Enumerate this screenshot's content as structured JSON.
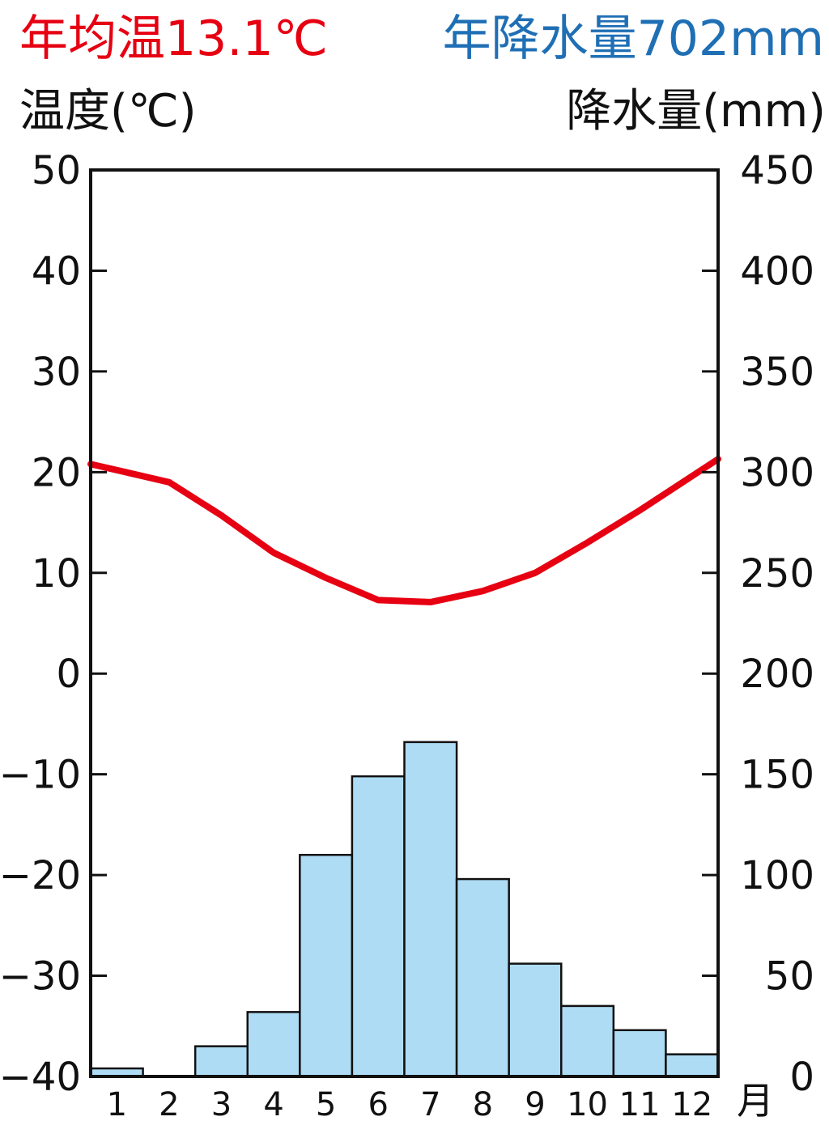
{
  "header": {
    "temp_summary": "年均温13.1℃",
    "precip_summary": "年降水量702mm",
    "temp_axis_label": "温度(℃)",
    "precip_axis_label": "降水量(mm)"
  },
  "colors": {
    "temperature_line": "#e60012",
    "precip_bar_fill": "#aedcf5",
    "precip_bar_stroke": "#111111",
    "temp_summary_text": "#e60012",
    "precip_summary_text": "#1f6fb5"
  },
  "chart_data": {
    "type": "bar+line",
    "x_unit_label": "月",
    "categories": [
      "1",
      "2",
      "3",
      "4",
      "5",
      "6",
      "7",
      "8",
      "9",
      "10",
      "11",
      "12"
    ],
    "temperature": {
      "values": [
        20.2,
        19.0,
        15.7,
        12.0,
        9.5,
        7.3,
        7.1,
        8.2,
        10.0,
        13.0,
        16.2,
        19.6
      ],
      "ylim": [
        -40,
        50
      ],
      "ticks": [
        "50",
        "40",
        "30",
        "20",
        "10",
        "0",
        "−10",
        "−20",
        "−30",
        "−40"
      ]
    },
    "precipitation": {
      "values": [
        4,
        0,
        15,
        32,
        110,
        149,
        166,
        98,
        56,
        35,
        23,
        11
      ],
      "ylim": [
        0,
        450
      ],
      "ticks": [
        "450",
        "400",
        "350",
        "300",
        "250",
        "200",
        "150",
        "100",
        "50",
        "0"
      ]
    },
    "grid": false
  }
}
